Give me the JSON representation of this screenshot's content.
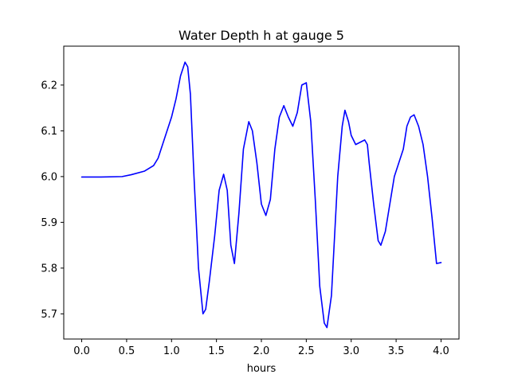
{
  "chart_data": {
    "type": "line",
    "title": "Water Depth h at gauge 5",
    "xlabel": "hours",
    "ylabel": "",
    "xlim": [
      -0.2,
      4.2
    ],
    "ylim": [
      5.645,
      6.285
    ],
    "x_ticks": [
      0.0,
      0.5,
      1.0,
      1.5,
      2.0,
      2.5,
      3.0,
      3.5,
      4.0
    ],
    "x_tick_labels": [
      "0.0",
      "0.5",
      "1.0",
      "1.5",
      "2.0",
      "2.5",
      "3.0",
      "3.5",
      "4.0"
    ],
    "y_ticks": [
      5.7,
      5.8,
      5.9,
      6.0,
      6.1,
      6.2
    ],
    "y_tick_labels": [
      "5.7",
      "5.8",
      "5.9",
      "6.0",
      "6.1",
      "6.2"
    ],
    "grid": false,
    "legend": "none",
    "series": [
      {
        "color": "#0000ff",
        "x": [
          0.0,
          0.2,
          0.45,
          0.55,
          0.7,
          0.8,
          0.85,
          0.9,
          1.0,
          1.05,
          1.1,
          1.15,
          1.18,
          1.21,
          1.25,
          1.3,
          1.35,
          1.38,
          1.42,
          1.48,
          1.53,
          1.58,
          1.62,
          1.66,
          1.7,
          1.75,
          1.8,
          1.86,
          1.9,
          1.95,
          2.0,
          2.05,
          2.1,
          2.15,
          2.2,
          2.25,
          2.3,
          2.35,
          2.4,
          2.45,
          2.5,
          2.55,
          2.6,
          2.65,
          2.7,
          2.73,
          2.78,
          2.85,
          2.9,
          2.93,
          2.97,
          3.0,
          3.05,
          3.1,
          3.15,
          3.18,
          3.2,
          3.25,
          3.3,
          3.33,
          3.38,
          3.43,
          3.48,
          3.53,
          3.58,
          3.62,
          3.66,
          3.7,
          3.75,
          3.8,
          3.85,
          3.9,
          3.95,
          4.0
        ],
        "y": [
          5.999,
          5.999,
          6.0,
          6.004,
          6.012,
          6.024,
          6.04,
          6.07,
          6.13,
          6.17,
          6.22,
          6.25,
          6.24,
          6.18,
          6.0,
          5.8,
          5.7,
          5.71,
          5.77,
          5.87,
          5.97,
          6.005,
          5.97,
          5.85,
          5.81,
          5.92,
          6.06,
          6.12,
          6.1,
          6.03,
          5.94,
          5.915,
          5.95,
          6.06,
          6.13,
          6.155,
          6.13,
          6.11,
          6.14,
          6.2,
          6.205,
          6.12,
          5.95,
          5.76,
          5.68,
          5.67,
          5.74,
          6.0,
          6.11,
          6.145,
          6.12,
          6.09,
          6.07,
          6.075,
          6.08,
          6.07,
          6.03,
          5.94,
          5.86,
          5.85,
          5.88,
          5.94,
          6.0,
          6.03,
          6.06,
          6.11,
          6.13,
          6.135,
          6.11,
          6.07,
          6.0,
          5.91,
          5.81,
          5.812
        ]
      }
    ]
  }
}
